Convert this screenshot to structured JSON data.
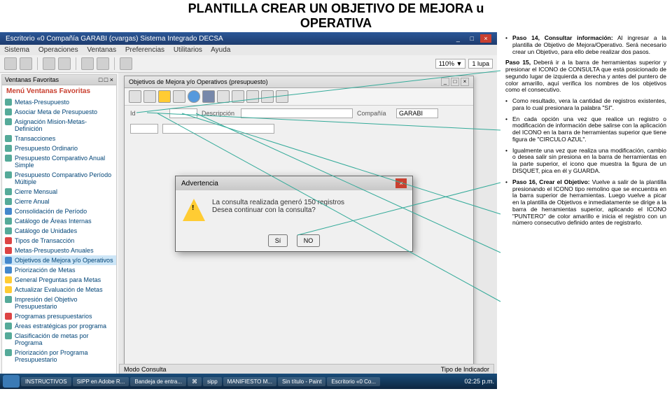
{
  "header": {
    "title": "PLANTILLA CREAR UN OBJETIVO DE MEJORA u",
    "subtitle": "OPERATIVA"
  },
  "window": {
    "title": "Escritorio «0 Compañía GARABI (cvargas) Sistema Integrado DECSA"
  },
  "menu": {
    "items": [
      "Sistema",
      "Operaciones",
      "Ventanas",
      "Preferencias",
      "Utilitarios",
      "Ayuda"
    ]
  },
  "toolbar": {
    "zoom": "110% ▼",
    "mode": "1 lupa"
  },
  "sidebar": {
    "header": "Ventanas Favoritas",
    "title": "Menú Ventanas Favoritas",
    "items": [
      {
        "label": "Metas-Presupuesto",
        "cls": ""
      },
      {
        "label": "Asociar Meta de Presupuesto",
        "cls": ""
      },
      {
        "label": "Asignación Mision-Metas-Definición",
        "cls": ""
      },
      {
        "label": "Transacciones",
        "cls": ""
      },
      {
        "label": "Presupuesto Ordinario",
        "cls": ""
      },
      {
        "label": "Presupuesto Comparativo Anual Simple",
        "cls": ""
      },
      {
        "label": "Presupuesto Comparativo Período Múltiple",
        "cls": ""
      },
      {
        "label": "Cierre Mensual",
        "cls": ""
      },
      {
        "label": "Cierre Anual",
        "cls": ""
      },
      {
        "label": "Consolidación de Período",
        "cls": "blue"
      },
      {
        "label": "Catálogo de Áreas Internas",
        "cls": ""
      },
      {
        "label": "Catálogo de Unidades",
        "cls": ""
      },
      {
        "label": "Tipos de Transacción",
        "cls": "red"
      },
      {
        "label": "Metas-Presupuesto Anuales",
        "cls": "red"
      },
      {
        "label": "Objetivos de Mejora y/o Operativos",
        "cls": "blue sel"
      },
      {
        "label": "Priorización de Metas",
        "cls": "blue"
      },
      {
        "label": "General Preguntas para Metas",
        "cls": "yellow"
      },
      {
        "label": "Actualizar Evaluación de Metas",
        "cls": "yellow"
      },
      {
        "label": "Impresión del Objetivo Presupuestario",
        "cls": ""
      },
      {
        "label": "Programas presupuestarios",
        "cls": "red"
      },
      {
        "label": "Áreas estratégicas por programa",
        "cls": ""
      },
      {
        "label": "Clasificación de metas por Programa",
        "cls": ""
      },
      {
        "label": "Priorización por Programa Presupuestario",
        "cls": ""
      }
    ]
  },
  "objpanel": {
    "title": "Objetivos de Mejora y/o Operativos (presupuesto)",
    "labels": {
      "id": "Id",
      "desc": "Descripción",
      "resp": "Compañía"
    },
    "values": {
      "id": "",
      "desc": "",
      "resp": "GARABI"
    }
  },
  "dialog": {
    "title": "Advertencia",
    "msg1": "La consulta realizada generó 150 registros",
    "msg2": "Desea continuar con la consulta?",
    "btn_yes": "Sí",
    "btn_no": "NO"
  },
  "statusbar": {
    "left": "Modo Consulta",
    "right": "Tipo de Indicador"
  },
  "taskbar": {
    "items": [
      "INSTRUCTIVOS",
      "SIPP en Adobe R...",
      "Bandeja de entra...",
      "⌘",
      "sipp",
      "MANIFIESTO M...",
      "Sin título - Paint",
      "Escritorio «0 Co..."
    ],
    "clock": "02:25 p.m."
  },
  "instructions": {
    "p14": "Paso 14, Consultar información:",
    "p14_body": " Al ingresar a la plantilla de Objetivo de Mejora/Operativo. Será necesario crear un Objetivo, para ello debe realizar dos pasos.",
    "p15": "Paso 15,",
    "p15_body": " Deberá ir a la barra de herramientas superior y presionar el ICONO de CONSULTA que está posicionado de segundo lugar de izquierda a derecha y antes del puntero de color amarillo, aquí verifica los nombres de los objetivos como el consecutivo.",
    "result": "Como resultado, vera la cantidad de registros existentes, para lo cual presionara la palabra \"SI\".",
    "circle": "En cada opción una vez que realice un registro o modificación de información debe salirse con la aplicación del ICONO en la barra de herramientas superior que tiene figura de \"CIRCULO AZUL\".",
    "disquet": "Igualmente una vez que realiza una modificación, cambio o desea salir sin presiona en la barra de herramientas en la parte superior, el icono que muestra la figura de un DISQUET, pica en él y GUARDA.",
    "p16": "Paso 16, Crear el Objetivo:",
    "p16_body": " Vuelve a salir de la plantilla presionando el ICONO tipo remolino que se encuentra en la barra superior de herramientas. Luego vuelve a picar en la plantilla de Objetivos e inmediatamente se dirige a la barra de herramientas superior, aplicando el ICONO \"PUNTERO\" de color amarillo e inicia el registro con un número consecutivo definido antes de registrarlo."
  }
}
